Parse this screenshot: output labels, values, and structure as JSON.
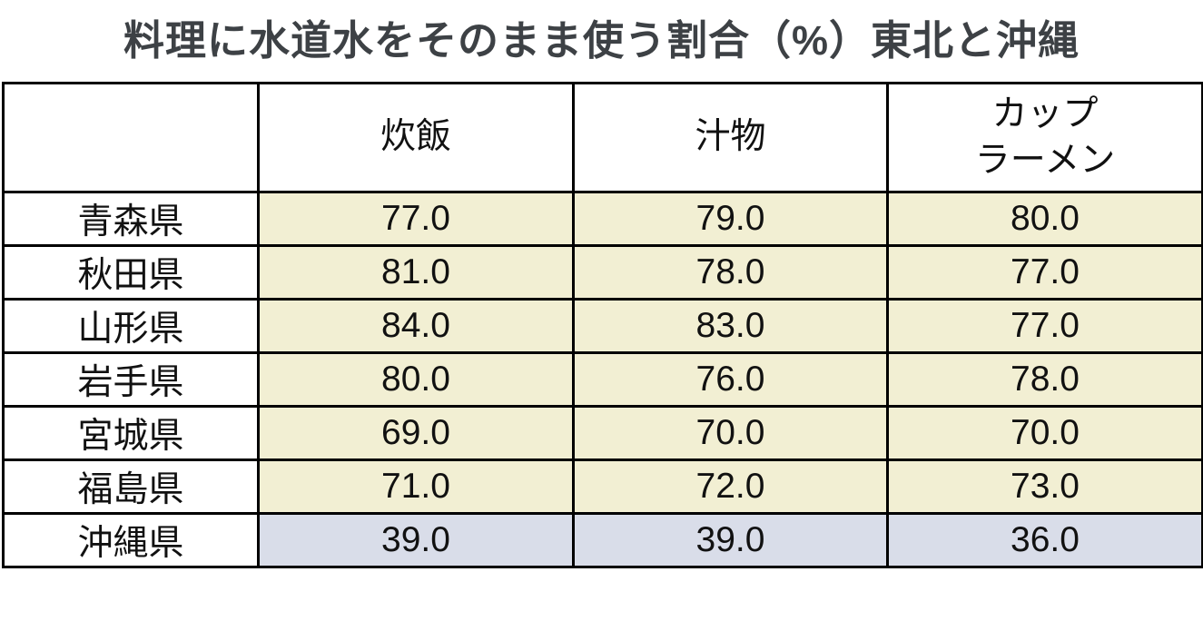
{
  "title": "料理に水道水をそのまま使う割合（%）東北と沖縄",
  "colors": {
    "tohoku_cell_bg": "#f2efd3",
    "okinawa_cell_bg": "#d9dde9",
    "border": "#000000",
    "title_text": "#3d4145",
    "cell_text": "#111111"
  },
  "table": {
    "columns": [
      "",
      "炊飯",
      "汁物",
      "カップ\nラーメン"
    ],
    "rows": [
      {
        "label": "青森県",
        "values": [
          "77.0",
          "79.0",
          "80.0"
        ],
        "highlight": "tohoku"
      },
      {
        "label": "秋田県",
        "values": [
          "81.0",
          "78.0",
          "77.0"
        ],
        "highlight": "tohoku"
      },
      {
        "label": "山形県",
        "values": [
          "84.0",
          "83.0",
          "77.0"
        ],
        "highlight": "tohoku"
      },
      {
        "label": "岩手県",
        "values": [
          "80.0",
          "76.0",
          "78.0"
        ],
        "highlight": "tohoku"
      },
      {
        "label": "宮城県",
        "values": [
          "69.0",
          "70.0",
          "70.0"
        ],
        "highlight": "tohoku"
      },
      {
        "label": "福島県",
        "values": [
          "71.0",
          "72.0",
          "73.0"
        ],
        "highlight": "tohoku"
      },
      {
        "label": "沖縄県",
        "values": [
          "39.0",
          "39.0",
          "36.0"
        ],
        "highlight": "okinawa"
      }
    ]
  },
  "chart_data": {
    "type": "table",
    "title": "料理に水道水をそのまま使う割合（%）東北と沖縄",
    "unit": "%",
    "row_labels": [
      "青森県",
      "秋田県",
      "山形県",
      "岩手県",
      "宮城県",
      "福島県",
      "沖縄県"
    ],
    "categories": [
      "炊飯",
      "汁物",
      "カップラーメン"
    ],
    "series": [
      {
        "name": "炊飯",
        "values": [
          77.0,
          81.0,
          84.0,
          80.0,
          69.0,
          71.0,
          39.0
        ]
      },
      {
        "name": "汁物",
        "values": [
          79.0,
          78.0,
          83.0,
          76.0,
          70.0,
          72.0,
          39.0
        ]
      },
      {
        "name": "カップラーメン",
        "values": [
          80.0,
          77.0,
          77.0,
          78.0,
          70.0,
          73.0,
          36.0
        ]
      }
    ],
    "notes": "東北6県の行はクリーム色、沖縄県の行は青灰色で強調されている"
  }
}
